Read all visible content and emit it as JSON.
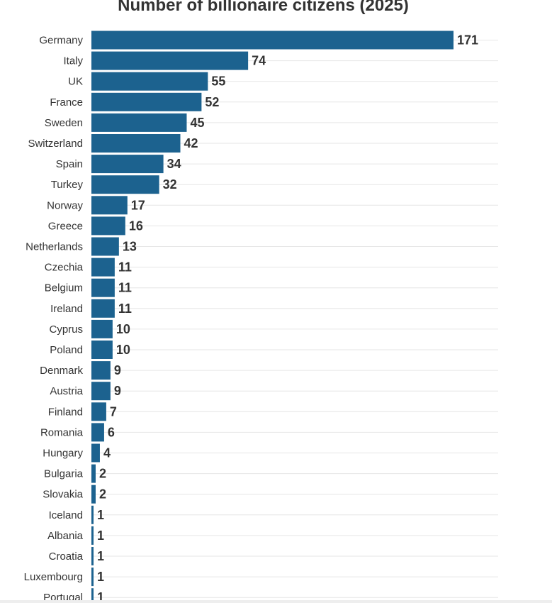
{
  "chart_data": {
    "type": "bar",
    "orientation": "horizontal",
    "title": "Number of billionaire citizens (2025)",
    "xlabel": "",
    "ylabel": "",
    "xlim": [
      0,
      171
    ],
    "grid": true,
    "colors": {
      "bar": "#1c628f",
      "label": "#333333",
      "grid": "#e6e6e6"
    },
    "categories": [
      "Germany",
      "Italy",
      "UK",
      "France",
      "Sweden",
      "Switzerland",
      "Spain",
      "Turkey",
      "Norway",
      "Greece",
      "Netherlands",
      "Czechia",
      "Belgium",
      "Ireland",
      "Cyprus",
      "Poland",
      "Denmark",
      "Austria",
      "Finland",
      "Romania",
      "Hungary",
      "Bulgaria",
      "Slovakia",
      "Iceland",
      "Albania",
      "Croatia",
      "Luxembourg",
      "Portugal"
    ],
    "values": [
      171,
      74,
      55,
      52,
      45,
      42,
      34,
      32,
      17,
      16,
      13,
      11,
      11,
      11,
      10,
      10,
      9,
      9,
      7,
      6,
      4,
      2,
      2,
      1,
      1,
      1,
      1,
      1
    ]
  }
}
